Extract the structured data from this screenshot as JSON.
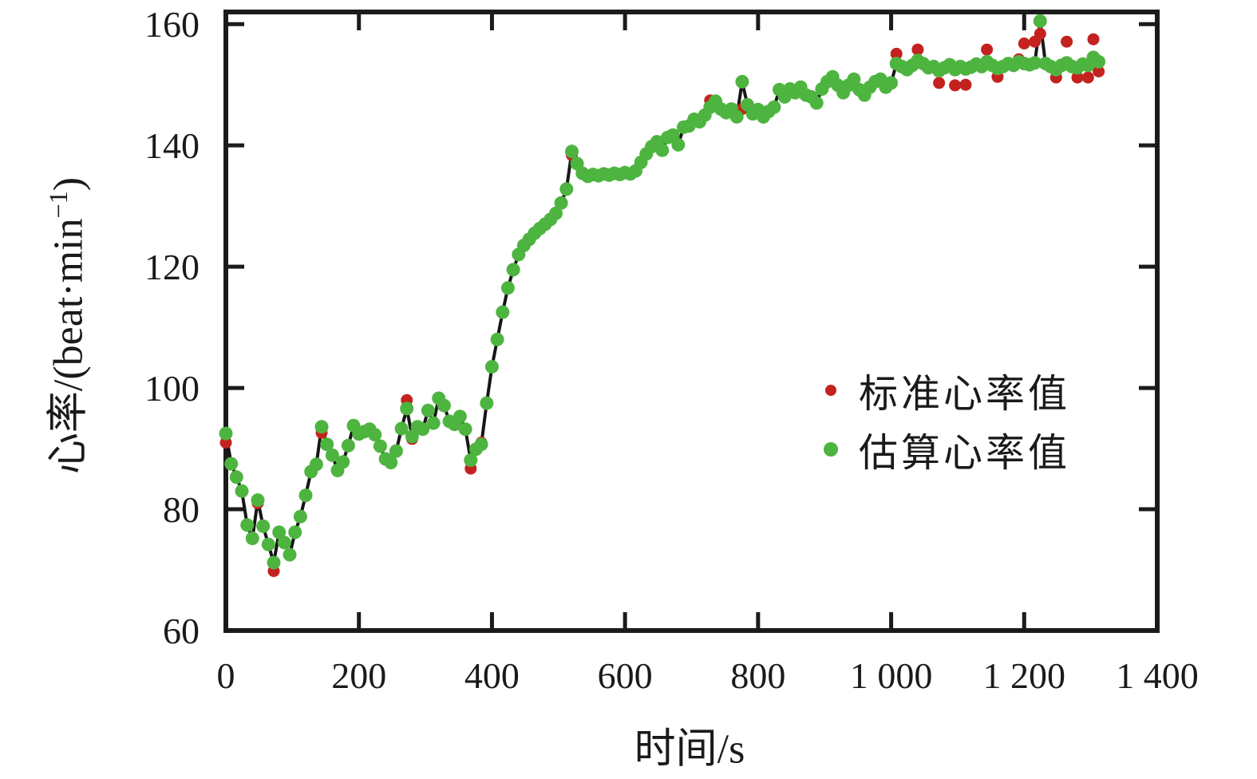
{
  "figure": {
    "background": "#ffffff",
    "axis_color": "#1b1b1b",
    "text_color": "#1a1a1a"
  },
  "axes": {
    "x": {
      "title": "时间/s",
      "ticks": [
        0,
        200,
        400,
        600,
        800,
        1000,
        1200,
        1400
      ],
      "tick_labels": [
        "0",
        "200",
        "400",
        "600",
        "800",
        "1 000",
        "1 200",
        "1 400"
      ],
      "range": [
        0,
        1400
      ]
    },
    "y": {
      "title_prefix": "心率/(beat·min",
      "title_sup": "−1",
      "title_suffix": ")",
      "ticks": [
        60,
        80,
        100,
        120,
        140,
        160
      ],
      "tick_labels": [
        "60",
        "80",
        "100",
        "120",
        "140",
        "160"
      ],
      "range": [
        60,
        162
      ]
    }
  },
  "legend": {
    "items": [
      {
        "label": "标准心率值",
        "color": "#c4221f",
        "marker": "dot"
      },
      {
        "label": "估算心率值",
        "color": "#4eb440",
        "marker": "dot"
      }
    ]
  },
  "chart_data": {
    "type": "scatter",
    "title": "",
    "xlabel": "时间/s",
    "ylabel": "心率/(beat·min⁻¹)",
    "xlim": [
      0,
      1400
    ],
    "ylim": [
      60,
      162
    ],
    "grid": false,
    "legend_position": "center-right",
    "line_color": "#161616",
    "x": [
      0,
      8,
      16,
      24,
      32,
      40,
      48,
      56,
      64,
      72,
      80,
      88,
      96,
      104,
      112,
      120,
      128,
      136,
      144,
      152,
      160,
      168,
      176,
      184,
      192,
      200,
      208,
      216,
      224,
      232,
      240,
      248,
      256,
      264,
      272,
      280,
      288,
      296,
      304,
      312,
      320,
      328,
      336,
      344,
      352,
      360,
      368,
      376,
      384,
      392,
      400,
      408,
      416,
      424,
      432,
      440,
      448,
      456,
      464,
      472,
      480,
      488,
      496,
      504,
      512,
      520,
      528,
      536,
      544,
      552,
      560,
      568,
      576,
      584,
      592,
      600,
      608,
      616,
      624,
      632,
      640,
      648,
      656,
      664,
      672,
      680,
      688,
      696,
      704,
      712,
      720,
      728,
      736,
      744,
      752,
      760,
      768,
      776,
      784,
      792,
      800,
      808,
      816,
      824,
      832,
      840,
      848,
      856,
      864,
      872,
      880,
      888,
      896,
      904,
      912,
      920,
      928,
      936,
      944,
      952,
      960,
      968,
      976,
      984,
      992,
      1000,
      1008,
      1016,
      1024,
      1032,
      1040,
      1048,
      1056,
      1064,
      1072,
      1080,
      1088,
      1096,
      1104,
      1112,
      1120,
      1128,
      1136,
      1144,
      1152,
      1160,
      1168,
      1176,
      1184,
      1192,
      1200,
      1208,
      1216,
      1224,
      1232,
      1240,
      1248,
      1256,
      1264,
      1272,
      1280,
      1288,
      1296,
      1304,
      1312
    ],
    "series": [
      {
        "name": "标准心率值",
        "color": "#c4221f",
        "marker_radius": 7.5,
        "values": [
          91.0,
          87.5,
          85.3,
          83.0,
          77.4,
          75.2,
          81.0,
          77.2,
          74.2,
          69.8,
          76.2,
          74.5,
          72.5,
          76.2,
          78.8,
          82.3,
          86.2,
          87.4,
          92.6,
          90.7,
          88.9,
          86.4,
          87.8,
          90.5,
          93.8,
          92.4,
          92.8,
          93.2,
          92.3,
          90.4,
          88.3,
          87.7,
          89.6,
          93.3,
          98.0,
          91.6,
          93.6,
          93.2,
          96.3,
          94.2,
          98.3,
          97.1,
          94.5,
          94.0,
          95.3,
          93.2,
          86.7,
          89.9,
          91.0,
          97.5,
          103.5,
          108.0,
          112.5,
          116.5,
          119.5,
          122.0,
          123.5,
          124.5,
          125.5,
          126.3,
          127.0,
          127.8,
          128.8,
          130.5,
          132.8,
          138.4,
          137.0,
          135.4,
          134.9,
          135.2,
          135.0,
          135.3,
          135.1,
          135.4,
          135.2,
          135.5,
          135.3,
          135.8,
          137.2,
          138.6,
          139.8,
          140.6,
          139.2,
          141.3,
          141.7,
          140.1,
          143.0,
          143.2,
          144.3,
          143.9,
          145.0,
          147.4,
          147.3,
          146.0,
          145.4,
          146.0,
          144.7,
          146.0,
          146.7,
          145.2,
          145.9,
          144.7,
          145.6,
          146.3,
          149.2,
          148.0,
          149.3,
          148.7,
          149.6,
          148.3,
          148.0,
          147.0,
          149.3,
          150.5,
          151.3,
          149.9,
          148.7,
          149.9,
          150.9,
          149.2,
          148.3,
          149.6,
          150.5,
          150.9,
          149.6,
          150.3,
          155.1,
          153.0,
          152.5,
          153.2,
          155.8,
          153.5,
          152.8,
          153.0,
          150.3,
          152.8,
          153.3,
          149.9,
          153.0,
          150.0,
          152.9,
          153.4,
          153.0,
          155.8,
          153.2,
          151.3,
          153.0,
          153.5,
          153.2,
          154.2,
          156.8,
          153.3,
          157.1,
          158.4,
          153.5,
          153.0,
          151.2,
          153.2,
          157.1,
          153.0,
          151.2,
          153.4,
          151.2,
          157.5,
          152.2
        ]
      },
      {
        "name": "估算心率值",
        "color": "#4eb440",
        "marker_radius": 8.5,
        "values": [
          92.5,
          87.5,
          85.3,
          83.0,
          77.4,
          75.2,
          81.5,
          77.2,
          74.2,
          71.2,
          76.2,
          74.5,
          72.5,
          76.2,
          78.8,
          82.3,
          86.2,
          87.4,
          93.6,
          90.7,
          88.9,
          86.4,
          87.8,
          90.5,
          93.8,
          92.4,
          92.8,
          93.2,
          92.3,
          90.4,
          88.3,
          87.7,
          89.6,
          93.3,
          96.6,
          92.0,
          93.6,
          93.2,
          96.3,
          94.2,
          98.3,
          97.1,
          94.5,
          94.0,
          95.3,
          93.2,
          88.1,
          89.9,
          90.7,
          97.5,
          103.5,
          108.0,
          112.5,
          116.5,
          119.5,
          122.0,
          123.5,
          124.5,
          125.5,
          126.3,
          127.0,
          127.8,
          128.8,
          130.5,
          132.8,
          139.0,
          137.0,
          135.4,
          134.9,
          135.2,
          135.0,
          135.3,
          135.1,
          135.4,
          135.2,
          135.5,
          135.3,
          135.8,
          137.2,
          138.6,
          139.8,
          140.6,
          139.2,
          141.3,
          141.7,
          140.1,
          143.0,
          143.2,
          144.3,
          143.9,
          145.0,
          146.3,
          147.3,
          146.0,
          145.4,
          146.0,
          144.7,
          150.5,
          146.7,
          145.2,
          145.9,
          144.7,
          145.6,
          146.3,
          149.2,
          148.0,
          149.3,
          148.7,
          149.6,
          148.3,
          148.0,
          147.0,
          149.3,
          150.5,
          151.3,
          149.9,
          148.7,
          149.9,
          150.9,
          149.2,
          148.3,
          149.6,
          150.5,
          150.9,
          149.6,
          150.3,
          153.5,
          153.0,
          152.5,
          153.2,
          154.0,
          153.5,
          152.8,
          153.0,
          152.3,
          152.8,
          153.3,
          152.5,
          153.0,
          152.6,
          152.9,
          153.4,
          153.0,
          153.8,
          153.2,
          152.7,
          153.0,
          153.5,
          153.2,
          153.8,
          153.5,
          153.3,
          153.6,
          160.5,
          153.5,
          153.0,
          152.5,
          153.2,
          153.6,
          153.0,
          152.8,
          153.4,
          153.2,
          154.5,
          153.8
        ]
      }
    ]
  }
}
